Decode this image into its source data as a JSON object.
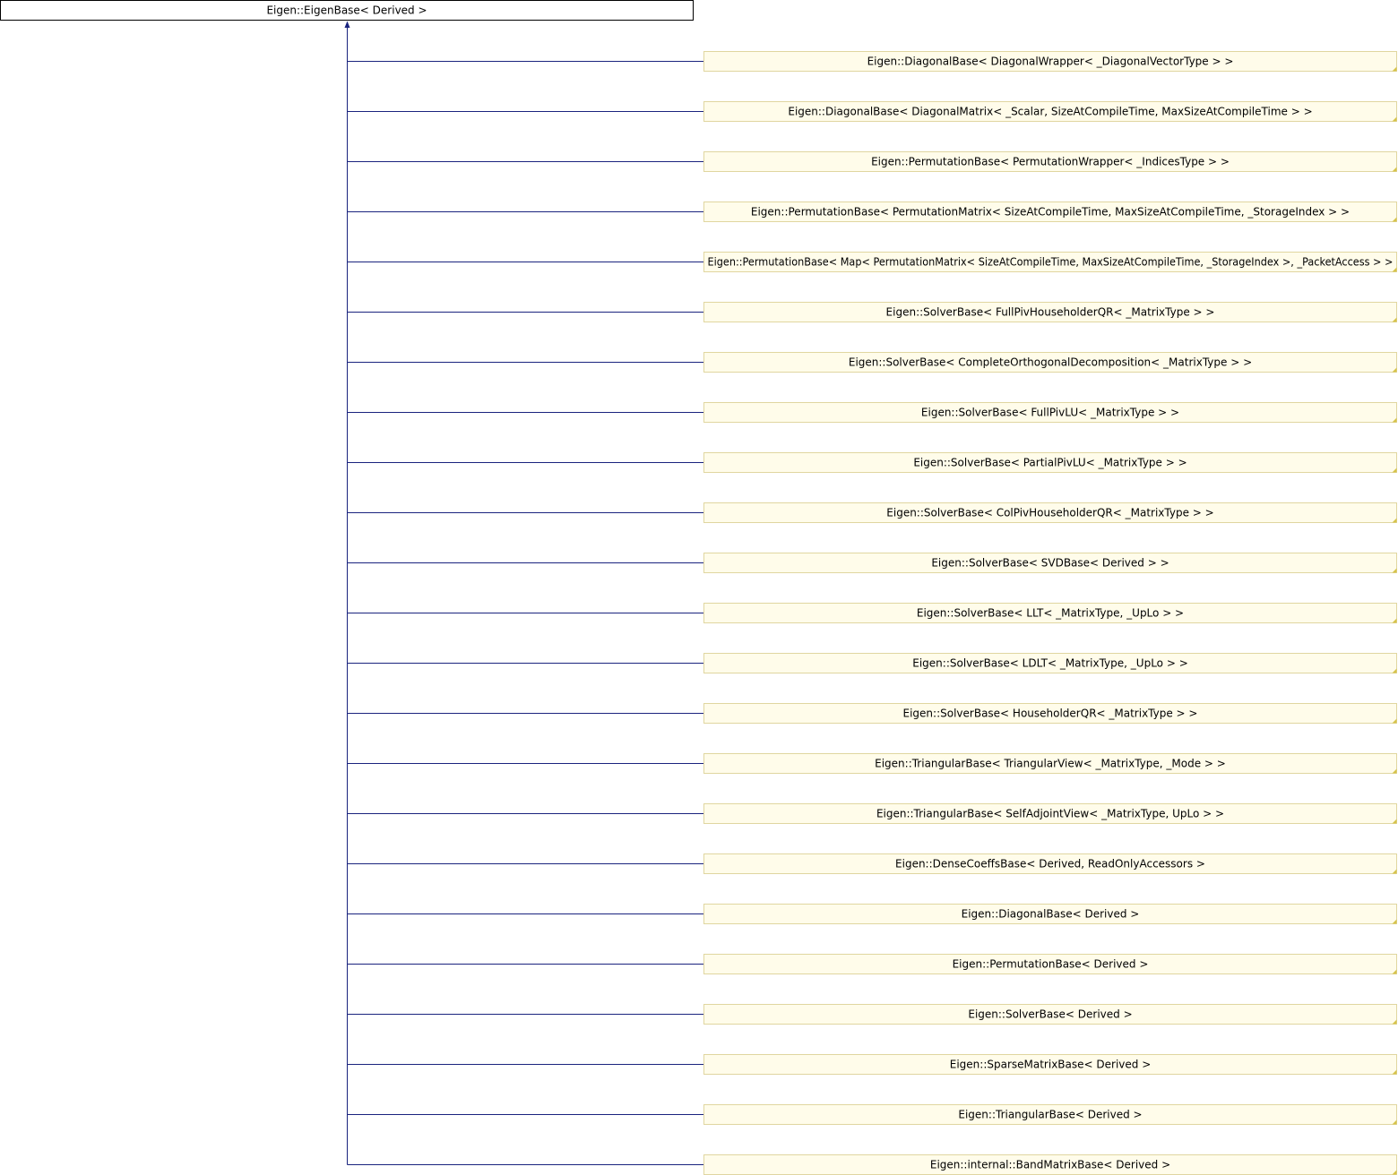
{
  "diagram": {
    "root": {
      "label": "Eigen::EigenBase< Derived >"
    },
    "children": [
      {
        "label": "Eigen::DiagonalBase< DiagonalWrapper< _DiagonalVectorType > >"
      },
      {
        "label": "Eigen::DiagonalBase< DiagonalMatrix< _Scalar, SizeAtCompileTime, MaxSizeAtCompileTime > >"
      },
      {
        "label": "Eigen::PermutationBase< PermutationWrapper< _IndicesType > >"
      },
      {
        "label": "Eigen::PermutationBase< PermutationMatrix< SizeAtCompileTime, MaxSizeAtCompileTime, _StorageIndex > >"
      },
      {
        "label": "Eigen::PermutationBase< Map< PermutationMatrix< SizeAtCompileTime, MaxSizeAtCompileTime, _StorageIndex >, _PacketAccess > >"
      },
      {
        "label": "Eigen::SolverBase< FullPivHouseholderQR< _MatrixType > >"
      },
      {
        "label": "Eigen::SolverBase< CompleteOrthogonalDecomposition< _MatrixType > >"
      },
      {
        "label": "Eigen::SolverBase< FullPivLU< _MatrixType > >"
      },
      {
        "label": "Eigen::SolverBase< PartialPivLU< _MatrixType > >"
      },
      {
        "label": "Eigen::SolverBase< ColPivHouseholderQR< _MatrixType > >"
      },
      {
        "label": "Eigen::SolverBase< SVDBase< Derived > >"
      },
      {
        "label": "Eigen::SolverBase< LLT< _MatrixType, _UpLo > >"
      },
      {
        "label": "Eigen::SolverBase< LDLT< _MatrixType, _UpLo > >"
      },
      {
        "label": "Eigen::SolverBase< HouseholderQR< _MatrixType > >"
      },
      {
        "label": "Eigen::TriangularBase< TriangularView< _MatrixType, _Mode > >"
      },
      {
        "label": "Eigen::TriangularBase< SelfAdjointView< _MatrixType, UpLo > >"
      },
      {
        "label": "Eigen::DenseCoeffsBase< Derived, ReadOnlyAccessors >"
      },
      {
        "label": "Eigen::DiagonalBase< Derived >"
      },
      {
        "label": "Eigen::PermutationBase< Derived >"
      },
      {
        "label": "Eigen::SolverBase< Derived >"
      },
      {
        "label": "Eigen::SparseMatrixBase< Derived >"
      },
      {
        "label": "Eigen::TriangularBase< Derived >"
      },
      {
        "label": "Eigen::internal::BandMatrixBase< Derived >"
      }
    ],
    "colors": {
      "edge": "#1a237e",
      "root_fill": "#ffffff",
      "root_border": "#000000",
      "child_fill": "#fffcea",
      "child_border": "#e0d6a0",
      "corner_mark": "#d6c34a"
    }
  }
}
